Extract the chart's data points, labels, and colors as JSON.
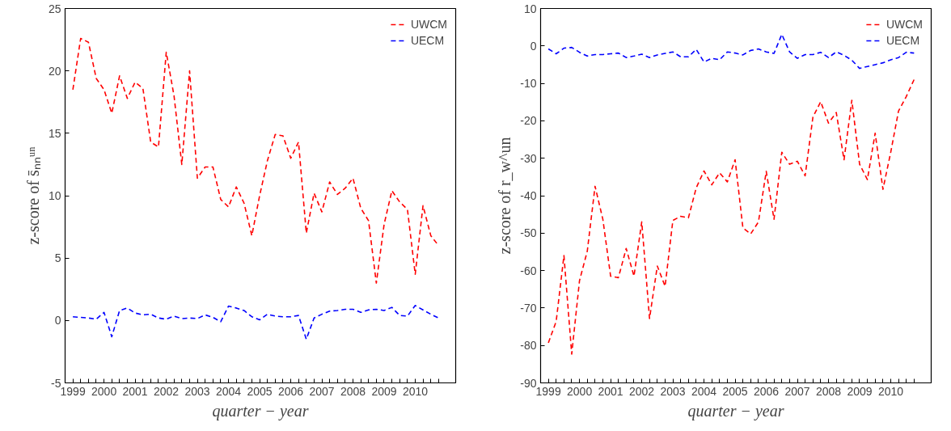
{
  "chart_data": [
    {
      "type": "line",
      "xlabel": "quarter − year",
      "ylabel": "z-score of s̄ₙₙᵘⁿ",
      "x": [
        1999,
        1999.25,
        1999.5,
        1999.75,
        2000,
        2000.25,
        2000.5,
        2000.75,
        2001,
        2001.25,
        2001.5,
        2001.75,
        2002,
        2002.25,
        2002.5,
        2002.75,
        2003,
        2003.25,
        2003.5,
        2003.75,
        2004,
        2004.25,
        2004.5,
        2004.75,
        2005,
        2005.25,
        2005.5,
        2005.75,
        2006,
        2006.25,
        2006.5,
        2006.75,
        2007,
        2007.25,
        2007.5,
        2007.75,
        2008,
        2008.25,
        2008.5,
        2008.75,
        2009,
        2009.25,
        2009.5,
        2009.75,
        2010,
        2010.25,
        2010.5,
        2010.75
      ],
      "series": [
        {
          "name": "UWCM",
          "color": "#ff0000",
          "values": [
            18.5,
            22.6,
            22.3,
            19.4,
            18.5,
            16.6,
            19.6,
            17.8,
            19.1,
            18.6,
            14.3,
            13.9,
            21.5,
            18.0,
            12.5,
            20.0,
            11.4,
            12.3,
            12.3,
            9.7,
            9.1,
            10.7,
            9.4,
            6.8,
            10.0,
            12.8,
            14.9,
            14.8,
            13.0,
            14.3,
            7.0,
            10.2,
            8.7,
            11.1,
            10.1,
            10.6,
            11.4,
            9.0,
            8.0,
            3.0,
            7.7,
            10.4,
            9.5,
            8.9,
            3.7,
            9.2,
            6.8,
            6.0
          ]
        },
        {
          "name": "UECM",
          "color": "#0000ff",
          "values": [
            0.3,
            0.25,
            0.2,
            0.1,
            0.65,
            -1.3,
            0.8,
            1.0,
            0.6,
            0.45,
            0.5,
            0.2,
            0.1,
            0.35,
            0.15,
            0.2,
            0.15,
            0.45,
            0.25,
            -0.1,
            1.15,
            1.0,
            0.8,
            0.3,
            0.05,
            0.5,
            0.35,
            0.3,
            0.3,
            0.4,
            -1.5,
            0.2,
            0.5,
            0.75,
            0.8,
            0.9,
            0.9,
            0.65,
            0.85,
            0.9,
            0.8,
            1.05,
            0.4,
            0.35,
            1.2,
            0.85,
            0.5,
            0.2
          ]
        }
      ],
      "xlim": [
        1998.75,
        2011.3
      ],
      "ylim": [
        -5,
        25
      ],
      "yticks": [
        -5,
        0,
        5,
        10,
        15,
        20,
        25
      ],
      "xticks": [
        {
          "value": 1999,
          "label": "1999"
        },
        {
          "value": 1999.25,
          "label": null
        },
        {
          "value": 1999.5,
          "label": null
        },
        {
          "value": 1999.75,
          "label": null
        },
        {
          "value": 2000,
          "label": "2000"
        },
        {
          "value": 2000.25,
          "label": null
        },
        {
          "value": 2000.5,
          "label": null
        },
        {
          "value": 2000.75,
          "label": null
        },
        {
          "value": 2001,
          "label": "2001"
        },
        {
          "value": 2001.25,
          "label": null
        },
        {
          "value": 2001.5,
          "label": null
        },
        {
          "value": 2001.75,
          "label": null
        },
        {
          "value": 2002,
          "label": "2002"
        },
        {
          "value": 2002.25,
          "label": null
        },
        {
          "value": 2002.5,
          "label": null
        },
        {
          "value": 2002.75,
          "label": null
        },
        {
          "value": 2003,
          "label": "2003"
        },
        {
          "value": 2003.25,
          "label": null
        },
        {
          "value": 2003.5,
          "label": null
        },
        {
          "value": 2003.75,
          "label": null
        },
        {
          "value": 2004,
          "label": "2004"
        },
        {
          "value": 2004.25,
          "label": null
        },
        {
          "value": 2004.5,
          "label": null
        },
        {
          "value": 2004.75,
          "label": null
        },
        {
          "value": 2005,
          "label": "2005"
        },
        {
          "value": 2005.25,
          "label": null
        },
        {
          "value": 2005.5,
          "label": null
        },
        {
          "value": 2005.75,
          "label": null
        },
        {
          "value": 2006,
          "label": "2006"
        },
        {
          "value": 2006.25,
          "label": null
        },
        {
          "value": 2006.5,
          "label": null
        },
        {
          "value": 2006.75,
          "label": null
        },
        {
          "value": 2007,
          "label": "2007"
        },
        {
          "value": 2007.25,
          "label": null
        },
        {
          "value": 2007.5,
          "label": null
        },
        {
          "value": 2007.75,
          "label": null
        },
        {
          "value": 2008,
          "label": "2008"
        },
        {
          "value": 2008.25,
          "label": null
        },
        {
          "value": 2008.5,
          "label": null
        },
        {
          "value": 2008.75,
          "label": null
        },
        {
          "value": 2009,
          "label": "2009"
        },
        {
          "value": 2009.25,
          "label": null
        },
        {
          "value": 2009.5,
          "label": null
        },
        {
          "value": 2009.75,
          "label": null
        },
        {
          "value": 2010,
          "label": "2010"
        },
        {
          "value": 2010.25,
          "label": null
        },
        {
          "value": 2010.5,
          "label": null
        },
        {
          "value": 2010.75,
          "label": null
        }
      ],
      "legend": "top right",
      "grid": false,
      "line_style": "dashed",
      "marker": "none"
    },
    {
      "type": "line",
      "xlabel": "quarter − year",
      "ylabel": "z-score of r_w^un",
      "x": [
        1999,
        1999.25,
        1999.5,
        1999.75,
        2000,
        2000.25,
        2000.5,
        2000.75,
        2001,
        2001.25,
        2001.5,
        2001.75,
        2002,
        2002.25,
        2002.5,
        2002.75,
        2003,
        2003.25,
        2003.5,
        2003.75,
        2004,
        2004.25,
        2004.5,
        2004.75,
        2005,
        2005.25,
        2005.5,
        2005.75,
        2006,
        2006.25,
        2006.5,
        2006.75,
        2007,
        2007.25,
        2007.5,
        2007.75,
        2008,
        2008.25,
        2008.5,
        2008.75,
        2009,
        2009.25,
        2009.5,
        2009.75,
        2010,
        2010.25,
        2010.5,
        2010.75
      ],
      "series": [
        {
          "name": "UWCM",
          "color": "#ff0000",
          "values": [
            -79.3,
            -73.6,
            -56,
            -82.3,
            -62.7,
            -54.8,
            -37.5,
            -46.3,
            -61.5,
            -61.9,
            -54.1,
            -61.5,
            -47.0,
            -72.8,
            -58.8,
            -64.2,
            -46.6,
            -45.5,
            -45.9,
            -37.9,
            -33.4,
            -37.1,
            -33.9,
            -36.3,
            -30.4,
            -48.6,
            -50.2,
            -47.0,
            -33.5,
            -46.3,
            -28.4,
            -31.6,
            -30.8,
            -34.7,
            -19.0,
            -14.9,
            -20.6,
            -17.8,
            -30.4,
            -14.5,
            -31.6,
            -35.7,
            -23.3,
            -38.3,
            -28.4,
            -17.4,
            -13.5,
            -9.0
          ]
        },
        {
          "name": "UECM",
          "color": "#0000ff",
          "values": [
            -0.8,
            -2.1,
            -0.6,
            -0.4,
            -1.7,
            -2.7,
            -2.3,
            -2.3,
            -2.1,
            -1.9,
            -3.1,
            -2.7,
            -2.2,
            -3.1,
            -2.4,
            -2.0,
            -1.6,
            -2.9,
            -2.9,
            -0.9,
            -4.3,
            -3.3,
            -3.7,
            -1.6,
            -1.9,
            -2.4,
            -1.2,
            -0.8,
            -1.6,
            -2.0,
            3.1,
            -1.6,
            -3.3,
            -2.3,
            -2.3,
            -1.7,
            -3.1,
            -1.6,
            -2.5,
            -3.8,
            -6.0,
            -5.5,
            -5.0,
            -4.5,
            -3.7,
            -3.1,
            -1.7,
            -1.9
          ]
        }
      ],
      "xlim": [
        1998.75,
        2011.3
      ],
      "ylim": [
        -90,
        10
      ],
      "yticks": [
        -90,
        -80,
        -70,
        -60,
        -50,
        -40,
        -30,
        -20,
        -10,
        0,
        10
      ],
      "xticks": [
        {
          "value": 1999,
          "label": "1999"
        },
        {
          "value": 1999.25,
          "label": null
        },
        {
          "value": 1999.5,
          "label": null
        },
        {
          "value": 1999.75,
          "label": null
        },
        {
          "value": 2000,
          "label": "2000"
        },
        {
          "value": 2000.25,
          "label": null
        },
        {
          "value": 2000.5,
          "label": null
        },
        {
          "value": 2000.75,
          "label": null
        },
        {
          "value": 2001,
          "label": "2001"
        },
        {
          "value": 2001.25,
          "label": null
        },
        {
          "value": 2001.5,
          "label": null
        },
        {
          "value": 2001.75,
          "label": null
        },
        {
          "value": 2002,
          "label": "2002"
        },
        {
          "value": 2002.25,
          "label": null
        },
        {
          "value": 2002.5,
          "label": null
        },
        {
          "value": 2002.75,
          "label": null
        },
        {
          "value": 2003,
          "label": "2003"
        },
        {
          "value": 2003.25,
          "label": null
        },
        {
          "value": 2003.5,
          "label": null
        },
        {
          "value": 2003.75,
          "label": null
        },
        {
          "value": 2004,
          "label": "2004"
        },
        {
          "value": 2004.25,
          "label": null
        },
        {
          "value": 2004.5,
          "label": null
        },
        {
          "value": 2004.75,
          "label": null
        },
        {
          "value": 2005,
          "label": "2005"
        },
        {
          "value": 2005.25,
          "label": null
        },
        {
          "value": 2005.5,
          "label": null
        },
        {
          "value": 2005.75,
          "label": null
        },
        {
          "value": 2006,
          "label": "2006"
        },
        {
          "value": 2006.25,
          "label": null
        },
        {
          "value": 2006.5,
          "label": null
        },
        {
          "value": 2006.75,
          "label": null
        },
        {
          "value": 2007,
          "label": "2007"
        },
        {
          "value": 2007.25,
          "label": null
        },
        {
          "value": 2007.5,
          "label": null
        },
        {
          "value": 2007.75,
          "label": null
        },
        {
          "value": 2008,
          "label": "2008"
        },
        {
          "value": 2008.25,
          "label": null
        },
        {
          "value": 2008.5,
          "label": null
        },
        {
          "value": 2008.75,
          "label": null
        },
        {
          "value": 2009,
          "label": "2009"
        },
        {
          "value": 2009.25,
          "label": null
        },
        {
          "value": 2009.5,
          "label": null
        },
        {
          "value": 2009.75,
          "label": null
        },
        {
          "value": 2010,
          "label": "2010"
        },
        {
          "value": 2010.25,
          "label": null
        },
        {
          "value": 2010.5,
          "label": null
        },
        {
          "value": 2010.75,
          "label": null
        }
      ],
      "legend": "top right",
      "grid": false,
      "line_style": "dashed",
      "marker": "none"
    }
  ]
}
